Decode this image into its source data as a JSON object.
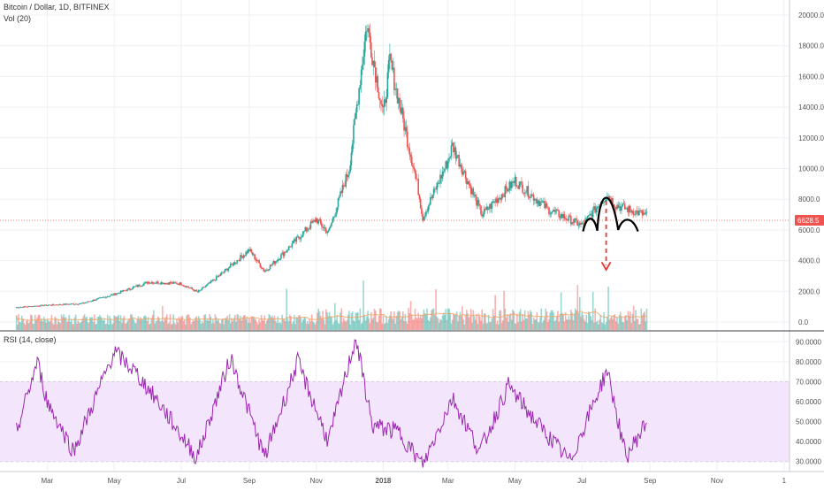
{
  "header": {
    "title": "Bitcoin / Dollar, 1D, BITFINEX",
    "volume_label": "Vol (20)"
  },
  "rsi_panel": {
    "title": "RSI (14, close)"
  },
  "price_tag": "6628.5",
  "colors": {
    "up": "#26a69a",
    "down": "#ef5350",
    "rsi": "#9c27b0",
    "band": "#f3e5fb",
    "volume_ma": "#f5a25d",
    "drawing": "#000000",
    "arrow": "#e53935"
  },
  "chart_data": [
    {
      "type": "candlestick",
      "title": "Bitcoin / Dollar, 1D, BITFINEX",
      "y_axis_ticks": [
        "20000.0",
        "18000.0",
        "16000.0",
        "14000.0",
        "12000.0",
        "10000.0",
        "8000.0",
        "6000.0",
        "4000.0",
        "2000.0",
        "0.0"
      ],
      "ylim": [
        0,
        20000
      ],
      "x_axis_ticks": [
        "Mar",
        "May",
        "Jul",
        "Sep",
        "Nov",
        "2018",
        "Mar",
        "May",
        "Jul",
        "Sep",
        "Nov",
        "1"
      ],
      "x": [
        "2017-02-01",
        "2017-03-01",
        "2017-04-01",
        "2017-05-01",
        "2017-06-01",
        "2017-07-01",
        "2017-07-16",
        "2017-08-01",
        "2017-09-01",
        "2017-09-15",
        "2017-10-01",
        "2017-11-01",
        "2017-11-12",
        "2017-12-01",
        "2017-12-17",
        "2018-01-01",
        "2018-01-07",
        "2018-02-01",
        "2018-02-06",
        "2018-03-01",
        "2018-03-05",
        "2018-04-01",
        "2018-05-01",
        "2018-06-01",
        "2018-07-01",
        "2018-07-24",
        "2018-08-01",
        "2018-08-29"
      ],
      "close": [
        950,
        1100,
        1200,
        1800,
        2600,
        2500,
        1950,
        2800,
        4700,
        3300,
        4400,
        6700,
        5800,
        10000,
        19400,
        13500,
        17000,
        9000,
        6800,
        10500,
        11500,
        7000,
        9200,
        7300,
        6300,
        8300,
        7600,
        6950
      ],
      "current_price": 6628.5,
      "annotations": [
        "head-and-shoulders drawing",
        "down arrow"
      ]
    },
    {
      "type": "volume",
      "title": "Vol (20)",
      "ma_period": 20
    },
    {
      "type": "line",
      "title": "RSI (14, close)",
      "y_axis_ticks": [
        "90.0000",
        "80.0000",
        "70.0000",
        "60.0000",
        "50.0000",
        "40.0000",
        "30.0000"
      ],
      "ylim": [
        25,
        95
      ],
      "band": [
        30,
        70
      ],
      "x": [
        "2017-02-01",
        "2017-02-20",
        "2017-03-01",
        "2017-03-25",
        "2017-05-01",
        "2017-05-20",
        "2017-06-10",
        "2017-07-15",
        "2017-08-15",
        "2017-09-15",
        "2017-10-15",
        "2017-11-12",
        "2017-12-07",
        "2017-12-22",
        "2018-01-15",
        "2018-02-06",
        "2018-03-05",
        "2018-03-30",
        "2018-04-25",
        "2018-05-20",
        "2018-06-20",
        "2018-07-24",
        "2018-08-10",
        "2018-08-29"
      ],
      "values": [
        45,
        80,
        60,
        35,
        85,
        75,
        60,
        32,
        82,
        32,
        80,
        40,
        92,
        48,
        45,
        28,
        62,
        35,
        68,
        50,
        30,
        76,
        32,
        50
      ]
    }
  ]
}
